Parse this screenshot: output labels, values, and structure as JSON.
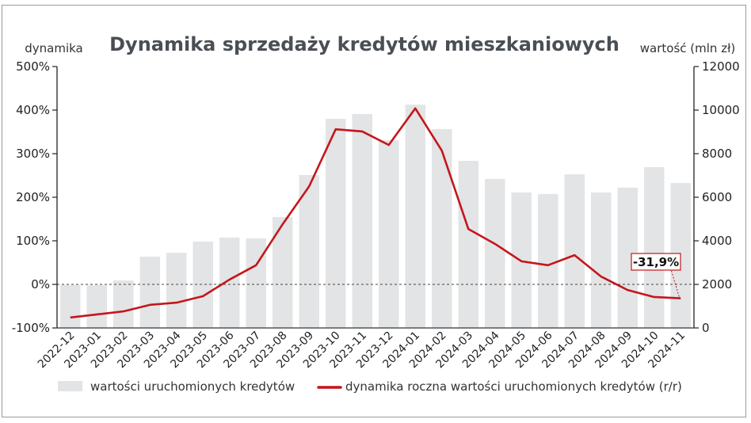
{
  "chart_data": {
    "type": "bar+line",
    "title": "Dynamika sprzedaży kredytów mieszkaniowych",
    "left_axis_label": "dynamika",
    "right_axis_label": "wartość (mln zł)",
    "left_ylim": [
      -100,
      500
    ],
    "left_ticks": [
      "500%",
      "400%",
      "300%",
      "200%",
      "100%",
      "0%",
      "-100%"
    ],
    "right_ylim": [
      0,
      12000
    ],
    "right_ticks": [
      "12000",
      "10000",
      "8000",
      "6000",
      "4000",
      "2000",
      "0"
    ],
    "categories": [
      "2022-12",
      "2023-01",
      "2023-02",
      "2023-03",
      "2023-04",
      "2023-05",
      "2023-06",
      "2023-07",
      "2023-08",
      "2023-09",
      "2023-10",
      "2023-11",
      "2023-12",
      "2024-01",
      "2024-02",
      "2024-03",
      "2024-04",
      "2024-05",
      "2024-06",
      "2024-07",
      "2024-08",
      "2024-09",
      "2024-10",
      "2024-11"
    ],
    "series": [
      {
        "name": "wartości uruchomionych kredytów",
        "type": "bar",
        "axis": "right",
        "color": "#e3e4e5",
        "values": [
          1970,
          1960,
          2180,
          3270,
          3450,
          3960,
          4150,
          4110,
          5090,
          7020,
          9600,
          9820,
          8620,
          10250,
          9130,
          7670,
          6840,
          6220,
          6150,
          7050,
          6220,
          6440,
          7380,
          6650
        ]
      },
      {
        "name": "dynamika roczna wartości uruchomionych kredytów (r/r)",
        "type": "line",
        "axis": "left",
        "color": "#c4161c",
        "values": [
          -76,
          -69,
          -62,
          -47,
          -42,
          -27,
          11,
          44,
          138,
          225,
          356,
          351,
          320,
          404,
          307,
          127,
          93,
          53,
          44,
          67,
          18,
          -13,
          -29,
          -31.9
        ]
      }
    ],
    "annotation": {
      "label": "-31,9%",
      "category": "2024-11"
    },
    "grid": false,
    "zero_line": "dotted",
    "legend_position": "bottom"
  }
}
